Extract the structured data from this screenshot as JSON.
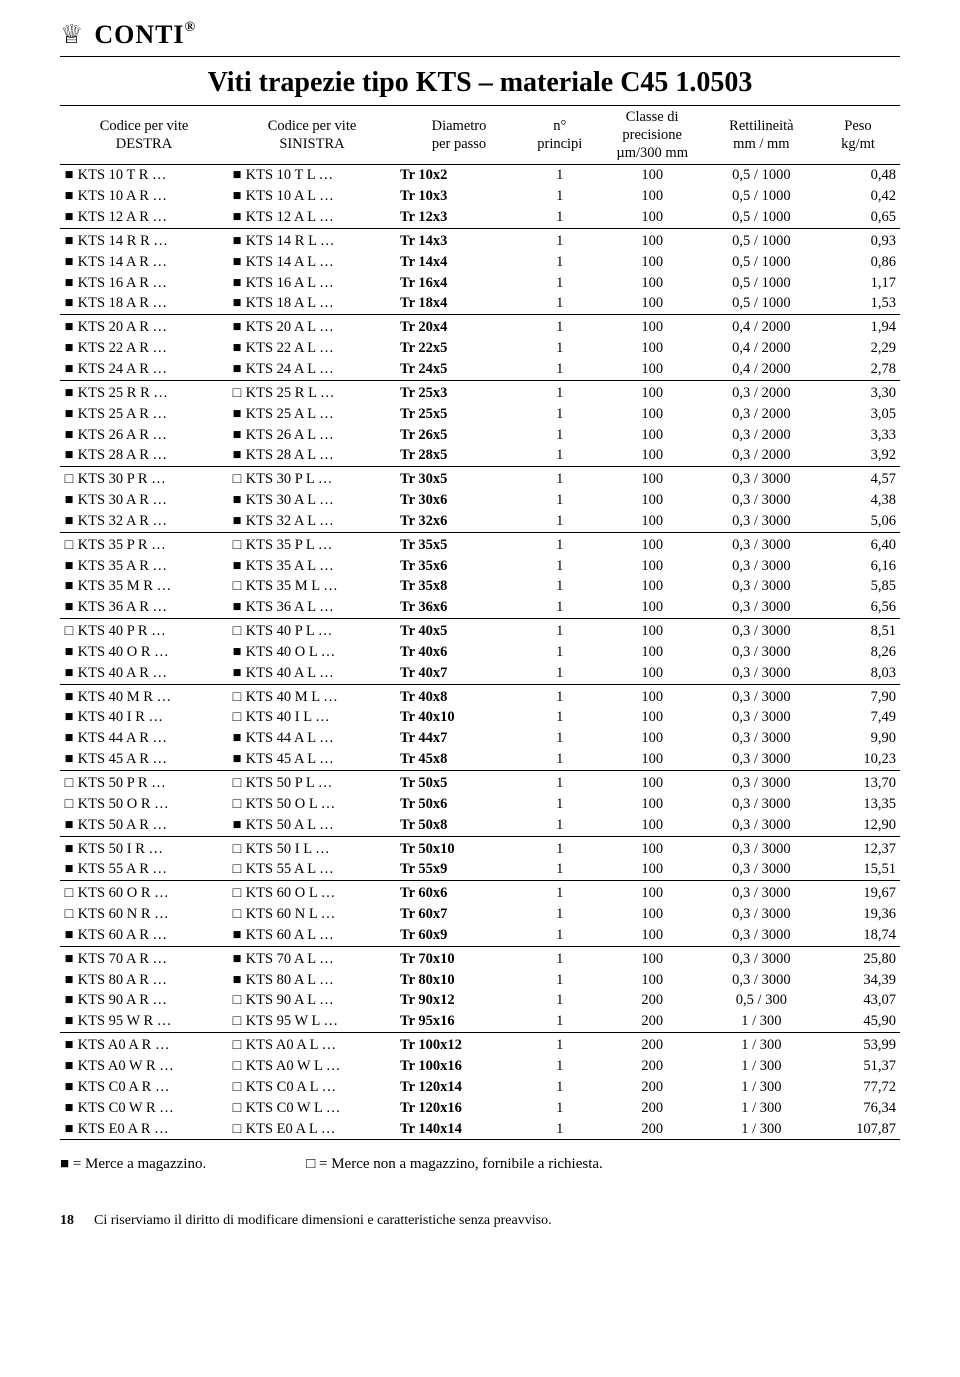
{
  "brand": "CONTI",
  "brand_sup": "®",
  "title": "Viti trapezie tipo KTS – materiale C45 1.0503",
  "legend_in_stock": "■ = Merce a magazzino.",
  "legend_on_request": "□ = Merce non a magazzino, fornibile a richiesta.",
  "page_number": "18",
  "disclaimer": "Ci riserviamo il diritto di modificare dimensioni e caratteristiche senza preavviso.",
  "columns": [
    "Codice per vite\nDESTRA",
    "Codice per vite\nSINISTRA",
    "Diametro\nper passo",
    "n°\nprincipi",
    "Classe di\nprecisione\nµm/300 mm",
    "Rettilineità\nmm / mm",
    "Peso\nkg/mt"
  ],
  "groups": [
    [
      {
        "br": "■",
        "r": "KTS 10 T R …",
        "bl": "■",
        "l": "KTS 10 T L …",
        "d": "Tr  10x2",
        "n": "1",
        "c": "100",
        "re": "0,5 / 1000",
        "p": "0,48"
      },
      {
        "br": "■",
        "r": "KTS 10 A R …",
        "bl": "■",
        "l": "KTS 10 A L …",
        "d": "Tr  10x3",
        "n": "1",
        "c": "100",
        "re": "0,5 / 1000",
        "p": "0,42"
      },
      {
        "br": "■",
        "r": "KTS 12 A R …",
        "bl": "■",
        "l": "KTS 12 A L …",
        "d": "Tr  12x3",
        "n": "1",
        "c": "100",
        "re": "0,5 / 1000",
        "p": "0,65"
      }
    ],
    [
      {
        "br": "■",
        "r": "KTS 14 R R …",
        "bl": "■",
        "l": "KTS 14 R L …",
        "d": "Tr  14x3",
        "n": "1",
        "c": "100",
        "re": "0,5 / 1000",
        "p": "0,93"
      },
      {
        "br": "■",
        "r": "KTS 14 A R …",
        "bl": "■",
        "l": "KTS 14 A L …",
        "d": "Tr  14x4",
        "n": "1",
        "c": "100",
        "re": "0,5 / 1000",
        "p": "0,86"
      },
      {
        "br": "■",
        "r": "KTS 16 A R …",
        "bl": "■",
        "l": "KTS 16 A L …",
        "d": "Tr  16x4",
        "n": "1",
        "c": "100",
        "re": "0,5 / 1000",
        "p": "1,17"
      },
      {
        "br": "■",
        "r": "KTS 18 A R …",
        "bl": "■",
        "l": "KTS 18 A L …",
        "d": "Tr  18x4",
        "n": "1",
        "c": "100",
        "re": "0,5 / 1000",
        "p": "1,53"
      }
    ],
    [
      {
        "br": "■",
        "r": "KTS 20 A R …",
        "bl": "■",
        "l": "KTS 20 A L …",
        "d": "Tr  20x4",
        "n": "1",
        "c": "100",
        "re": "0,4 / 2000",
        "p": "1,94"
      },
      {
        "br": "■",
        "r": "KTS 22 A R …",
        "bl": "■",
        "l": "KTS 22 A L …",
        "d": "Tr  22x5",
        "n": "1",
        "c": "100",
        "re": "0,4 / 2000",
        "p": "2,29"
      },
      {
        "br": "■",
        "r": "KTS 24 A R …",
        "bl": "■",
        "l": "KTS 24 A L …",
        "d": "Tr  24x5",
        "n": "1",
        "c": "100",
        "re": "0,4 / 2000",
        "p": "2,78"
      }
    ],
    [
      {
        "br": "■",
        "r": "KTS 25 R R …",
        "bl": "□",
        "l": "KTS 25 R L …",
        "d": "Tr  25x3",
        "n": "1",
        "c": "100",
        "re": "0,3 / 2000",
        "p": "3,30"
      },
      {
        "br": "■",
        "r": "KTS 25 A R …",
        "bl": "■",
        "l": "KTS 25 A L …",
        "d": "Tr  25x5",
        "n": "1",
        "c": "100",
        "re": "0,3 / 2000",
        "p": "3,05"
      },
      {
        "br": "■",
        "r": "KTS 26 A R …",
        "bl": "■",
        "l": "KTS 26 A L …",
        "d": "Tr  26x5",
        "n": "1",
        "c": "100",
        "re": "0,3 / 2000",
        "p": "3,33"
      },
      {
        "br": "■",
        "r": "KTS 28 A R …",
        "bl": "■",
        "l": "KTS 28 A L …",
        "d": "Tr  28x5",
        "n": "1",
        "c": "100",
        "re": "0,3 / 2000",
        "p": "3,92"
      }
    ],
    [
      {
        "br": "□",
        "r": "KTS 30 P R …",
        "bl": "□",
        "l": "KTS 30 P L …",
        "d": "Tr  30x5",
        "n": "1",
        "c": "100",
        "re": "0,3 / 3000",
        "p": "4,57"
      },
      {
        "br": "■",
        "r": "KTS 30 A R …",
        "bl": "■",
        "l": "KTS 30 A L …",
        "d": "Tr  30x6",
        "n": "1",
        "c": "100",
        "re": "0,3 / 3000",
        "p": "4,38"
      },
      {
        "br": "■",
        "r": "KTS 32 A R …",
        "bl": "■",
        "l": "KTS 32 A L …",
        "d": "Tr  32x6",
        "n": "1",
        "c": "100",
        "re": "0,3 / 3000",
        "p": "5,06"
      }
    ],
    [
      {
        "br": "□",
        "r": "KTS 35 P R …",
        "bl": "□",
        "l": "KTS 35 P L …",
        "d": "Tr  35x5",
        "n": "1",
        "c": "100",
        "re": "0,3 / 3000",
        "p": "6,40"
      },
      {
        "br": "■",
        "r": "KTS 35 A R …",
        "bl": "■",
        "l": "KTS 35 A L …",
        "d": "Tr  35x6",
        "n": "1",
        "c": "100",
        "re": "0,3 / 3000",
        "p": "6,16"
      },
      {
        "br": "■",
        "r": "KTS 35 M R …",
        "bl": "□",
        "l": "KTS 35 M L …",
        "d": "Tr  35x8",
        "n": "1",
        "c": "100",
        "re": "0,3 / 3000",
        "p": "5,85"
      },
      {
        "br": "■",
        "r": "KTS 36 A R …",
        "bl": "■",
        "l": "KTS 36 A L …",
        "d": "Tr  36x6",
        "n": "1",
        "c": "100",
        "re": "0,3 / 3000",
        "p": "6,56"
      }
    ],
    [
      {
        "br": "□",
        "r": "KTS 40 P R …",
        "bl": "□",
        "l": "KTS 40 P L …",
        "d": "Tr  40x5",
        "n": "1",
        "c": "100",
        "re": "0,3 / 3000",
        "p": "8,51"
      },
      {
        "br": "■",
        "r": "KTS 40 O R …",
        "bl": "■",
        "l": "KTS 40 O L …",
        "d": "Tr  40x6",
        "n": "1",
        "c": "100",
        "re": "0,3 / 3000",
        "p": "8,26"
      },
      {
        "br": "■",
        "r": "KTS 40 A R …",
        "bl": "■",
        "l": "KTS 40 A L …",
        "d": "Tr  40x7",
        "n": "1",
        "c": "100",
        "re": "0,3 / 3000",
        "p": "8,03"
      }
    ],
    [
      {
        "br": "■",
        "r": "KTS 40 M R …",
        "bl": "□",
        "l": "KTS 40 M L …",
        "d": "Tr  40x8",
        "n": "1",
        "c": "100",
        "re": "0,3 / 3000",
        "p": "7,90"
      },
      {
        "br": "■",
        "r": "KTS 40  I  R …",
        "bl": "□",
        "l": "KTS 40  I  L …",
        "d": "Tr  40x10",
        "n": "1",
        "c": "100",
        "re": "0,3 / 3000",
        "p": "7,49"
      },
      {
        "br": "■",
        "r": "KTS 44 A R …",
        "bl": "■",
        "l": "KTS 44 A L …",
        "d": "Tr  44x7",
        "n": "1",
        "c": "100",
        "re": "0,3 / 3000",
        "p": "9,90"
      },
      {
        "br": "■",
        "r": "KTS 45 A R …",
        "bl": "■",
        "l": "KTS 45 A L …",
        "d": "Tr  45x8",
        "n": "1",
        "c": "100",
        "re": "0,3 / 3000",
        "p": "10,23"
      }
    ],
    [
      {
        "br": "□",
        "r": "KTS 50 P R …",
        "bl": "□",
        "l": "KTS 50 P L …",
        "d": "Tr  50x5",
        "n": "1",
        "c": "100",
        "re": "0,3 / 3000",
        "p": "13,70"
      },
      {
        "br": "□",
        "r": "KTS 50 O R …",
        "bl": "□",
        "l": "KTS 50 O L …",
        "d": "Tr  50x6",
        "n": "1",
        "c": "100",
        "re": "0,3 / 3000",
        "p": "13,35"
      },
      {
        "br": "■",
        "r": "KTS 50 A R …",
        "bl": "■",
        "l": "KTS 50 A L …",
        "d": "Tr  50x8",
        "n": "1",
        "c": "100",
        "re": "0,3 / 3000",
        "p": "12,90"
      }
    ],
    [
      {
        "br": "■",
        "r": "KTS 50  I  R …",
        "bl": "□",
        "l": "KTS 50  I  L …",
        "d": "Tr  50x10",
        "n": "1",
        "c": "100",
        "re": "0,3 / 3000",
        "p": "12,37"
      },
      {
        "br": "■",
        "r": "KTS 55 A R …",
        "bl": "□",
        "l": "KTS 55 A L …",
        "d": "Tr  55x9",
        "n": "1",
        "c": "100",
        "re": "0,3 / 3000",
        "p": "15,51"
      }
    ],
    [
      {
        "br": "□",
        "r": "KTS 60 O R …",
        "bl": "□",
        "l": "KTS 60 O L …",
        "d": "Tr  60x6",
        "n": "1",
        "c": "100",
        "re": "0,3 / 3000",
        "p": "19,67"
      },
      {
        "br": "□",
        "r": "KTS 60 N R …",
        "bl": "□",
        "l": "KTS 60 N L …",
        "d": "Tr  60x7",
        "n": "1",
        "c": "100",
        "re": "0,3 / 3000",
        "p": "19,36"
      },
      {
        "br": "■",
        "r": "KTS 60 A R …",
        "bl": "■",
        "l": "KTS 60 A L …",
        "d": "Tr  60x9",
        "n": "1",
        "c": "100",
        "re": "0,3 / 3000",
        "p": "18,74"
      }
    ],
    [
      {
        "br": "■",
        "r": "KTS 70 A R …",
        "bl": "■",
        "l": "KTS 70 A L …",
        "d": "Tr  70x10",
        "n": "1",
        "c": "100",
        "re": "0,3 / 3000",
        "p": "25,80"
      },
      {
        "br": "■",
        "r": "KTS 80 A R …",
        "bl": "■",
        "l": "KTS 80 A L …",
        "d": "Tr  80x10",
        "n": "1",
        "c": "100",
        "re": "0,3 / 3000",
        "p": "34,39"
      },
      {
        "br": "■",
        "r": "KTS 90 A R …",
        "bl": "□",
        "l": "KTS 90 A L …",
        "d": "Tr  90x12",
        "n": "1",
        "c": "200",
        "re": "0,5 / 300",
        "p": "43,07"
      },
      {
        "br": "■",
        "r": "KTS 95 W R …",
        "bl": "□",
        "l": "KTS 95 W L …",
        "d": "Tr  95x16",
        "n": "1",
        "c": "200",
        "re": "1 / 300",
        "p": "45,90"
      }
    ],
    [
      {
        "br": "■",
        "r": "KTS A0 A R …",
        "bl": "□",
        "l": "KTS A0 A L …",
        "d": "Tr 100x12",
        "n": "1",
        "c": "200",
        "re": "1 / 300",
        "p": "53,99"
      },
      {
        "br": "■",
        "r": "KTS A0 W R …",
        "bl": "□",
        "l": "KTS A0 W L …",
        "d": "Tr 100x16",
        "n": "1",
        "c": "200",
        "re": "1 / 300",
        "p": "51,37"
      },
      {
        "br": "■",
        "r": "KTS C0 A R …",
        "bl": "□",
        "l": "KTS C0 A L …",
        "d": "Tr 120x14",
        "n": "1",
        "c": "200",
        "re": "1 / 300",
        "p": "77,72"
      },
      {
        "br": "■",
        "r": "KTS C0 W R …",
        "bl": "□",
        "l": "KTS C0 W L …",
        "d": "Tr 120x16",
        "n": "1",
        "c": "200",
        "re": "1 / 300",
        "p": "76,34"
      },
      {
        "br": "■",
        "r": "KTS E0 A R …",
        "bl": "□",
        "l": "KTS E0 A L …",
        "d": "Tr 140x14",
        "n": "1",
        "c": "200",
        "re": "1 / 300",
        "p": "107,87"
      }
    ]
  ]
}
